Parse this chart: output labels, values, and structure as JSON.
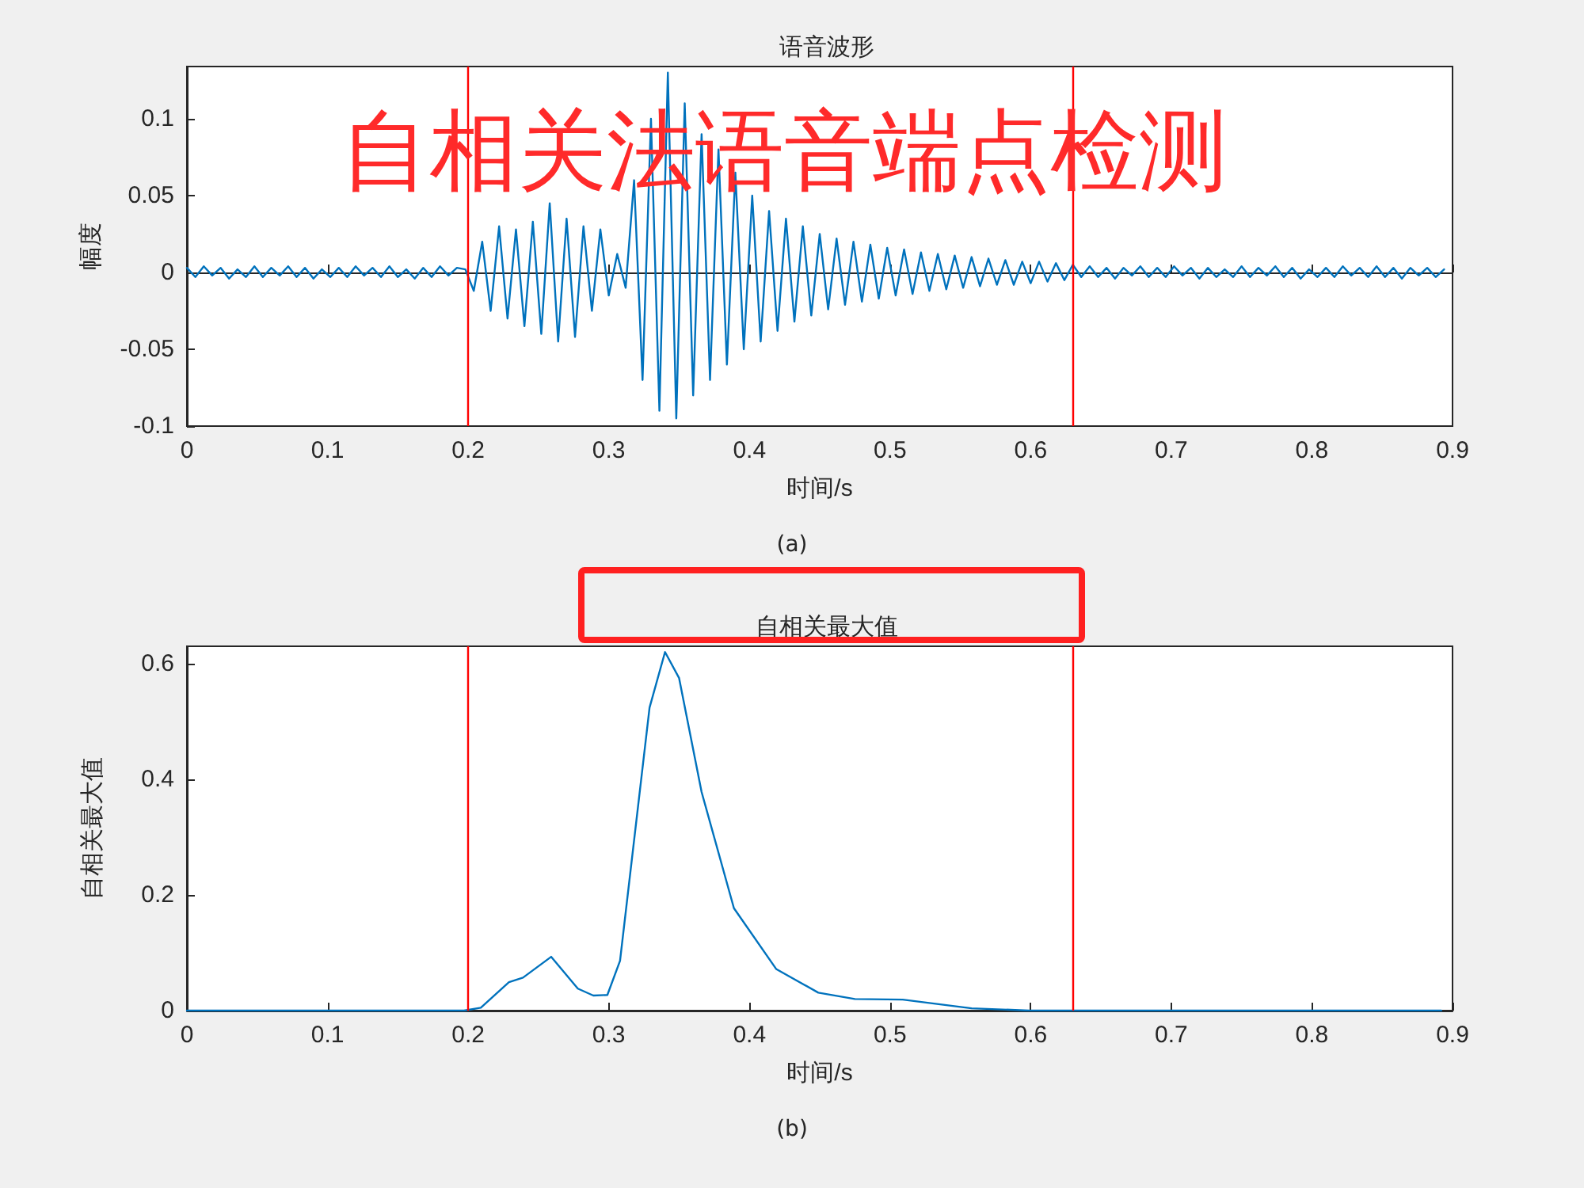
{
  "chart_data": [
    {
      "type": "line",
      "title": "语音波形",
      "xlabel": "时间/s",
      "ylabel": "幅度",
      "annotations": [
        "自相关法语音端点检测",
        "(a)"
      ],
      "xlim": [
        0,
        0.9
      ],
      "xticks": [
        0,
        0.1,
        0.2,
        0.3,
        0.4,
        0.5,
        0.6,
        0.7,
        0.8,
        0.9
      ],
      "ylim": [
        -0.1,
        0.134
      ],
      "yticks": [
        -0.1,
        -0.05,
        0,
        0.05,
        0.1
      ],
      "grid": false,
      "marker": "none",
      "line_style": "solid",
      "ref_lines": [
        {
          "axis": "x",
          "value": 0.2,
          "color": "#ff0000"
        },
        {
          "axis": "x",
          "value": 0.63,
          "color": "#ff0000"
        }
      ],
      "series": [
        {
          "color": "#0072bd",
          "x": [
            0,
            0.006,
            0.012,
            0.018,
            0.024,
            0.03,
            0.036,
            0.042,
            0.048,
            0.054,
            0.06,
            0.066,
            0.072,
            0.078,
            0.084,
            0.09,
            0.096,
            0.102,
            0.108,
            0.114,
            0.12,
            0.126,
            0.132,
            0.138,
            0.144,
            0.15,
            0.156,
            0.162,
            0.168,
            0.174,
            0.18,
            0.186,
            0.192,
            0.198,
            0.204,
            0.21,
            0.216,
            0.222,
            0.228,
            0.234,
            0.24,
            0.246,
            0.252,
            0.258,
            0.264,
            0.27,
            0.276,
            0.282,
            0.288,
            0.294,
            0.3,
            0.306,
            0.312,
            0.318,
            0.324,
            0.33,
            0.336,
            0.342,
            0.348,
            0.354,
            0.36,
            0.366,
            0.372,
            0.378,
            0.384,
            0.39,
            0.396,
            0.402,
            0.408,
            0.414,
            0.42,
            0.426,
            0.432,
            0.438,
            0.444,
            0.45,
            0.456,
            0.462,
            0.468,
            0.474,
            0.48,
            0.486,
            0.492,
            0.498,
            0.504,
            0.51,
            0.516,
            0.522,
            0.528,
            0.534,
            0.54,
            0.546,
            0.552,
            0.558,
            0.564,
            0.57,
            0.576,
            0.582,
            0.588,
            0.594,
            0.6,
            0.606,
            0.612,
            0.618,
            0.624,
            0.63,
            0.636,
            0.642,
            0.648,
            0.654,
            0.66,
            0.666,
            0.672,
            0.678,
            0.684,
            0.69,
            0.696,
            0.702,
            0.708,
            0.714,
            0.72,
            0.726,
            0.732,
            0.738,
            0.744,
            0.75,
            0.756,
            0.762,
            0.768,
            0.774,
            0.78,
            0.786,
            0.792,
            0.798,
            0.804,
            0.81,
            0.816,
            0.822,
            0.828,
            0.834,
            0.84,
            0.846,
            0.852,
            0.858,
            0.864,
            0.87,
            0.876,
            0.882,
            0.888,
            0.894
          ],
          "values": [
            0.003,
            -0.003,
            0.004,
            -0.002,
            0.003,
            -0.004,
            0.002,
            -0.003,
            0.004,
            -0.003,
            0.003,
            -0.002,
            0.004,
            -0.003,
            0.003,
            -0.004,
            0.002,
            -0.003,
            0.003,
            -0.003,
            0.004,
            -0.002,
            0.003,
            -0.003,
            0.004,
            -0.003,
            0.002,
            -0.004,
            0.003,
            -0.003,
            0.004,
            -0.002,
            0.003,
            0.002,
            -0.012,
            0.02,
            -0.025,
            0.03,
            -0.03,
            0.028,
            -0.035,
            0.033,
            -0.04,
            0.045,
            -0.045,
            0.035,
            -0.042,
            0.03,
            -0.025,
            0.028,
            -0.015,
            0.012,
            -0.01,
            0.06,
            -0.07,
            0.1,
            -0.09,
            0.13,
            -0.095,
            0.11,
            -0.08,
            0.09,
            -0.07,
            0.08,
            -0.06,
            0.065,
            -0.05,
            0.05,
            -0.045,
            0.04,
            -0.038,
            0.035,
            -0.032,
            0.03,
            -0.028,
            0.025,
            -0.024,
            0.022,
            -0.021,
            0.02,
            -0.019,
            0.018,
            -0.017,
            0.016,
            -0.015,
            0.015,
            -0.014,
            0.013,
            -0.012,
            0.012,
            -0.011,
            0.011,
            -0.01,
            0.01,
            -0.009,
            0.009,
            -0.008,
            0.008,
            -0.008,
            0.007,
            -0.007,
            0.007,
            -0.006,
            0.006,
            -0.005,
            0.005,
            -0.003,
            0.004,
            -0.003,
            0.003,
            -0.004,
            0.003,
            -0.002,
            0.004,
            -0.003,
            0.003,
            -0.003,
            0.004,
            -0.002,
            0.003,
            -0.004,
            0.003,
            -0.003,
            0.002,
            -0.003,
            0.004,
            -0.003,
            0.003,
            -0.002,
            0.004,
            -0.003,
            0.003,
            -0.004,
            0.002,
            -0.003,
            0.003,
            -0.003,
            0.004,
            -0.002,
            0.003,
            -0.003,
            0.004,
            -0.003,
            0.003,
            -0.004,
            0.003,
            -0.002,
            0.003,
            -0.003,
            0.002
          ]
        }
      ]
    },
    {
      "type": "line",
      "title": "自相关最大值",
      "xlabel": "时间/s",
      "ylabel": "自相关最大值",
      "annotations": [
        "(b)"
      ],
      "xlim": [
        0,
        0.9
      ],
      "xticks": [
        0,
        0.1,
        0.2,
        0.3,
        0.4,
        0.5,
        0.6,
        0.7,
        0.8,
        0.9
      ],
      "ylim": [
        0,
        0.63
      ],
      "yticks": [
        0,
        0.2,
        0.4,
        0.6
      ],
      "grid": false,
      "marker": "none",
      "line_style": "solid",
      "ref_lines": [
        {
          "axis": "x",
          "value": 0.2,
          "color": "#ff0000"
        },
        {
          "axis": "x",
          "value": 0.63,
          "color": "#ff0000"
        }
      ],
      "series": [
        {
          "color": "#0072bd",
          "x": [
            0,
            0.1,
            0.182,
            0.197,
            0.209,
            0.229,
            0.239,
            0.259,
            0.278,
            0.289,
            0.299,
            0.308,
            0.329,
            0.34,
            0.35,
            0.366,
            0.389,
            0.419,
            0.449,
            0.475,
            0.509,
            0.558,
            0.599,
            0.7,
            0.8,
            0.892
          ],
          "values": [
            0,
            0,
            0,
            0,
            0.005,
            0.049,
            0.057,
            0.093,
            0.038,
            0.026,
            0.027,
            0.086,
            0.524,
            0.62,
            0.575,
            0.378,
            0.177,
            0.072,
            0.031,
            0.02,
            0.019,
            0.004,
            0,
            0,
            0,
            0
          ]
        }
      ]
    }
  ]
}
